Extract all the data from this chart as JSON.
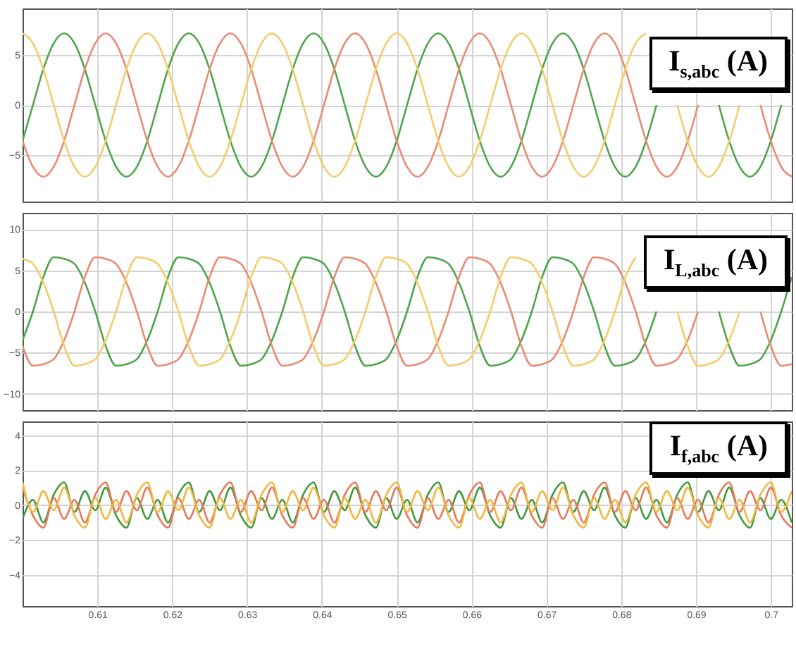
{
  "chart_data": [
    {
      "type": "line",
      "title": "I$_{s,abc}$ (A)",
      "x": [
        0.6,
        0.60139,
        0.60278,
        0.60417,
        0.60556,
        0.60694,
        0.60833,
        0.60972,
        0.61111,
        0.6125,
        0.61389,
        0.61528,
        0.61667,
        0.61806,
        0.61944,
        0.62083,
        0.62222,
        0.62361,
        0.625,
        0.62639,
        0.62778,
        0.62917,
        0.63056,
        0.63194,
        0.63333,
        0.63472,
        0.63611,
        0.6375,
        0.63889,
        0.64028,
        0.64167,
        0.64306,
        0.64444,
        0.64583,
        0.64722,
        0.64861,
        0.65,
        0.65139,
        0.65278,
        0.65417,
        0.65556,
        0.65694,
        0.65833,
        0.65972,
        0.66111,
        0.6625,
        0.66389,
        0.66528,
        0.66667,
        0.66806,
        0.66944,
        0.67083,
        0.67222,
        0.67361,
        0.675,
        0.67639,
        0.67778,
        0.67917,
        0.68056,
        0.68194,
        0.68333,
        0.68472,
        0.68611,
        0.6875,
        0.68889,
        0.69028,
        0.69167,
        0.69306,
        0.69444,
        0.69583,
        0.69722,
        0.69861,
        0.7,
        0.70139,
        0.70278
      ],
      "series": [
        {
          "color": "#4ea54a",
          "values": [
            -3.6,
            0,
            3.6,
            6.2,
            7.2,
            6.2,
            3.6,
            0,
            -3.6,
            -6.2,
            -7.2,
            -6.2,
            -3.6,
            0,
            3.6,
            6.2,
            7.2,
            6.2,
            3.6,
            0,
            -3.6,
            -6.2,
            -7.2,
            -6.2,
            -3.6,
            0,
            3.6,
            6.2,
            7.2,
            6.2,
            3.6,
            0,
            -3.6,
            -6.2,
            -7.2,
            -6.2,
            -3.6,
            0,
            3.6,
            6.2,
            7.2,
            6.2,
            3.6,
            0,
            -3.6,
            -6.2,
            -7.2,
            -6.2,
            -3.6,
            0,
            3.6,
            6.2,
            7.2,
            6.2,
            3.6,
            0,
            -3.6,
            -6.2,
            -7.2,
            -6.2,
            -3.6,
            0,
            null,
            null,
            null,
            null,
            null,
            0,
            -3.6,
            -6.2,
            -7.2,
            -6.2,
            -3.6,
            0,
            null
          ]
        },
        {
          "color": "#e98b72",
          "values": [
            -3.6,
            -6.2,
            -7.2,
            -6.2,
            -3.6,
            0,
            3.6,
            6.2,
            7.2,
            6.2,
            3.6,
            0,
            -3.6,
            -6.2,
            -7.2,
            -6.2,
            -3.6,
            0,
            3.6,
            6.2,
            7.2,
            6.2,
            3.6,
            0,
            -3.6,
            -6.2,
            -7.2,
            -6.2,
            -3.6,
            0,
            3.6,
            6.2,
            7.2,
            6.2,
            3.6,
            0,
            -3.6,
            -6.2,
            -7.2,
            -6.2,
            -3.6,
            0,
            3.6,
            6.2,
            7.2,
            6.2,
            3.6,
            0,
            -3.6,
            -6.2,
            -7.2,
            -6.2,
            -3.6,
            0,
            3.6,
            6.2,
            7.2,
            6.2,
            3.6,
            0,
            -3.6,
            -6.2,
            -7.2,
            -6.2,
            -3.6,
            0,
            null,
            null,
            null,
            null,
            null,
            0,
            -3.6,
            -6.2,
            -7.2
          ]
        },
        {
          "color": "#f4cc6a",
          "values": [
            7.2,
            6.2,
            3.6,
            0,
            -3.6,
            -6.2,
            -7.2,
            -6.2,
            -3.6,
            0,
            3.6,
            6.2,
            7.2,
            6.2,
            3.6,
            0,
            -3.6,
            -6.2,
            -7.2,
            -6.2,
            -3.6,
            0,
            3.6,
            6.2,
            7.2,
            6.2,
            3.6,
            0,
            -3.6,
            -6.2,
            -7.2,
            -6.2,
            -3.6,
            0,
            3.6,
            6.2,
            7.2,
            6.2,
            3.6,
            0,
            -3.6,
            -6.2,
            -7.2,
            -6.2,
            -3.6,
            0,
            3.6,
            6.2,
            7.2,
            6.2,
            3.6,
            0,
            -3.6,
            -6.2,
            -7.2,
            -6.2,
            -3.6,
            0,
            3.6,
            6.2,
            7.2,
            null,
            null,
            0,
            -3.6,
            -6.2,
            -7.2,
            -6.2,
            -3.6,
            0,
            null,
            null,
            null,
            null,
            null
          ]
        }
      ],
      "xlim": [
        0.6,
        0.7028
      ],
      "xticks": [
        0.61,
        0.62,
        0.63,
        0.64,
        0.65,
        0.66,
        0.67,
        0.68,
        0.69,
        0.7
      ],
      "ylim": [
        -9.7,
        9.7
      ],
      "yticks": [
        -5,
        0,
        5
      ],
      "grid": true,
      "tick_labels": "y"
    },
    {
      "type": "line",
      "title": "I$_{L,abc}$ (A)",
      "x": [
        0.6,
        0.60139,
        0.60278,
        0.60417,
        0.60556,
        0.60694,
        0.60833,
        0.60972,
        0.61111,
        0.6125,
        0.61389,
        0.61528,
        0.61667,
        0.61806,
        0.61944,
        0.62083,
        0.62222,
        0.62361,
        0.625,
        0.62639,
        0.62778,
        0.62917,
        0.63056,
        0.63194,
        0.63333,
        0.63472,
        0.63611,
        0.6375,
        0.63889,
        0.64028,
        0.64167,
        0.64306,
        0.64444,
        0.64583,
        0.64722,
        0.64861,
        0.65,
        0.65139,
        0.65278,
        0.65417,
        0.65556,
        0.65694,
        0.65833,
        0.65972,
        0.66111,
        0.6625,
        0.66389,
        0.66528,
        0.66667,
        0.66806,
        0.66944,
        0.67083,
        0.67222,
        0.67361,
        0.675,
        0.67639,
        0.67778,
        0.67917,
        0.68056,
        0.68194,
        0.68333,
        0.68472,
        0.68611,
        0.6875,
        0.68889,
        0.69028,
        0.69167,
        0.69306,
        0.69444,
        0.69583,
        0.69722,
        0.69861,
        0.7,
        0.70139,
        0.70278
      ],
      "series": [
        {
          "color": "#4ea54a",
          "values": [
            -3.5,
            0,
            4.2,
            6.6,
            6.4,
            5.8,
            3.5,
            0,
            -4.2,
            -6.6,
            -6.4,
            -5.8,
            -3.5,
            0,
            4.2,
            6.6,
            6.4,
            5.8,
            3.5,
            0,
            -4.2,
            -6.6,
            -6.4,
            -5.8,
            -3.5,
            0,
            4.2,
            6.6,
            6.4,
            5.8,
            3.5,
            0,
            -4.2,
            -6.6,
            -6.4,
            -5.8,
            -3.5,
            0,
            4.2,
            6.6,
            6.4,
            5.8,
            3.5,
            0,
            -4.2,
            -6.6,
            -6.4,
            -5.8,
            -3.5,
            0,
            4.2,
            6.6,
            6.4,
            5.8,
            3.5,
            0,
            -4.2,
            -6.6,
            -6.4,
            -5.8,
            -3.5,
            0,
            null,
            null,
            null,
            null,
            null,
            0,
            -4.2,
            -6.6,
            -6.4,
            -5.8,
            -3.5,
            0,
            4.2
          ]
        },
        {
          "color": "#e98b72",
          "values": [
            -4.2,
            -6.6,
            -6.4,
            -5.8,
            -3.5,
            0,
            4.2,
            6.6,
            6.4,
            5.8,
            3.5,
            0,
            -4.2,
            -6.6,
            -6.4,
            -5.8,
            -3.5,
            0,
            4.2,
            6.6,
            6.4,
            5.8,
            3.5,
            0,
            -4.2,
            -6.6,
            -6.4,
            -5.8,
            -3.5,
            0,
            4.2,
            6.6,
            6.4,
            5.8,
            3.5,
            0,
            -4.2,
            -6.6,
            -6.4,
            -5.8,
            -3.5,
            0,
            4.2,
            6.6,
            6.4,
            5.8,
            3.5,
            0,
            -4.2,
            -6.6,
            -6.4,
            -5.8,
            -3.5,
            0,
            4.2,
            6.6,
            6.4,
            5.8,
            3.5,
            0,
            -4.2,
            -6.6,
            -6.4,
            -5.8,
            -3.5,
            0,
            null,
            null,
            null,
            null,
            null,
            0,
            -4.2,
            -6.6,
            -6.4
          ]
        },
        {
          "color": "#f4cc6a",
          "values": [
            6.4,
            5.8,
            3.5,
            0,
            -4.2,
            -6.6,
            -6.4,
            -5.8,
            -3.5,
            0,
            4.2,
            6.6,
            6.4,
            5.8,
            3.5,
            0,
            -4.2,
            -6.6,
            -6.4,
            -5.8,
            -3.5,
            0,
            4.2,
            6.6,
            6.4,
            5.8,
            3.5,
            0,
            -4.2,
            -6.6,
            -6.4,
            -5.8,
            -3.5,
            0,
            4.2,
            6.6,
            6.4,
            5.8,
            3.5,
            0,
            -4.2,
            -6.6,
            -6.4,
            -5.8,
            -3.5,
            0,
            4.2,
            6.6,
            6.4,
            5.8,
            3.5,
            0,
            -4.2,
            -6.6,
            -6.4,
            -5.8,
            -3.5,
            0,
            4.2,
            6.6,
            null,
            null,
            null,
            0,
            -4.2,
            -6.6,
            -6.4,
            -5.8,
            -3.5,
            0,
            null,
            null,
            null,
            null,
            null
          ]
        }
      ],
      "xlim": [
        0.6,
        0.7028
      ],
      "xticks": [
        0.61,
        0.62,
        0.63,
        0.64,
        0.65,
        0.66,
        0.67,
        0.68,
        0.69,
        0.7
      ],
      "ylim": [
        -12,
        12
      ],
      "yticks": [
        -10,
        -5,
        0,
        5,
        10
      ],
      "grid": true,
      "tick_labels": "y"
    },
    {
      "type": "line",
      "title": "I$_{f,abc}$ (A)",
      "x": [
        0.6,
        0.60139,
        0.60278,
        0.60417,
        0.60556,
        0.60694,
        0.60833,
        0.60972,
        0.61111,
        0.6125,
        0.61389,
        0.61528,
        0.61667,
        0.61806,
        0.61944,
        0.62083,
        0.62222,
        0.62361,
        0.625,
        0.62639,
        0.62778,
        0.62917,
        0.63056,
        0.63194,
        0.63333,
        0.63472,
        0.63611,
        0.6375,
        0.63889,
        0.64028,
        0.64167,
        0.64306,
        0.64444,
        0.64583,
        0.64722,
        0.64861,
        0.65,
        0.65139,
        0.65278,
        0.65417,
        0.65556,
        0.65694,
        0.65833,
        0.65972,
        0.66111,
        0.6625,
        0.66389,
        0.66528,
        0.66667,
        0.66806,
        0.66944,
        0.67083,
        0.67222,
        0.67361,
        0.675,
        0.67639,
        0.67778,
        0.67917,
        0.68056,
        0.68194,
        0.68333,
        0.68472,
        0.68611,
        0.6875,
        0.68889,
        0.69028,
        0.69167,
        0.69306,
        0.69444,
        0.69583,
        0.69722,
        0.69861,
        0.7,
        0.70139,
        0.70278
      ],
      "series": [
        {
          "color": "#3f9a3c",
          "values": [
            -0.8,
            0.3,
            -1.0,
            0.6,
            1.3,
            -0.4,
            0.8,
            -0.3,
            1.0,
            -0.6,
            -1.3,
            0.4,
            -0.8,
            0.3,
            -1.0,
            0.6,
            1.3,
            -0.4,
            0.8,
            -0.3,
            1.0,
            -0.6,
            -1.3,
            0.4,
            -0.8,
            0.3,
            -1.0,
            0.6,
            1.3,
            -0.4,
            0.8,
            -0.3,
            1.0,
            -0.6,
            -1.3,
            0.4,
            -0.8,
            0.3,
            -1.0,
            0.6,
            1.3,
            -0.4,
            0.8,
            -0.3,
            1.0,
            -0.6,
            -1.3,
            0.4,
            -0.8,
            0.3,
            -1.0,
            0.6,
            1.3,
            -0.4,
            0.8,
            -0.3,
            1.0,
            -0.6,
            -1.3,
            0.4,
            -0.8,
            0.3,
            -1.0,
            0.6,
            1.3,
            -0.4,
            0.8,
            -0.3,
            1.0,
            -0.6,
            -1.3,
            0.4,
            -0.8,
            0.3,
            -1.0
          ]
        },
        {
          "color": "#e8775a",
          "values": [
            1.0,
            -0.6,
            -1.3,
            0.4,
            -0.8,
            0.3,
            -1.0,
            0.6,
            1.3,
            -0.4,
            0.8,
            -0.3,
            1.0,
            -0.6,
            -1.3,
            0.4,
            -0.8,
            0.3,
            -1.0,
            0.6,
            1.3,
            -0.4,
            0.8,
            -0.3,
            1.0,
            -0.6,
            -1.3,
            0.4,
            -0.8,
            0.3,
            -1.0,
            0.6,
            1.3,
            -0.4,
            0.8,
            -0.3,
            1.0,
            -0.6,
            -1.3,
            0.4,
            -0.8,
            0.3,
            -1.0,
            0.6,
            1.3,
            -0.4,
            0.8,
            -0.3,
            1.0,
            -0.6,
            -1.3,
            0.4,
            -0.8,
            0.3,
            -1.0,
            0.6,
            1.3,
            -0.4,
            0.8,
            -0.3,
            1.0,
            -0.6,
            -1.3,
            0.4,
            -0.8,
            0.3,
            -1.0,
            0.6,
            1.3,
            -0.4,
            0.8,
            -0.3,
            1.0,
            -0.6,
            -1.3
          ]
        },
        {
          "color": "#f2b63c",
          "values": [
            1.3,
            -0.4,
            0.8,
            -0.3,
            1.0,
            -0.6,
            -1.3,
            0.4,
            -0.8,
            0.3,
            -1.0,
            0.6,
            1.3,
            -0.4,
            0.8,
            -0.3,
            1.0,
            -0.6,
            -1.3,
            0.4,
            -0.8,
            0.3,
            -1.0,
            0.6,
            1.3,
            -0.4,
            0.8,
            -0.3,
            1.0,
            -0.6,
            -1.3,
            0.4,
            -0.8,
            0.3,
            -1.0,
            0.6,
            1.3,
            -0.4,
            0.8,
            -0.3,
            1.0,
            -0.6,
            -1.3,
            0.4,
            -0.8,
            0.3,
            -1.0,
            0.6,
            1.3,
            -0.4,
            0.8,
            -0.3,
            1.0,
            -0.6,
            -1.3,
            0.4,
            -0.8,
            0.3,
            -1.0,
            0.6,
            1.3,
            -0.4,
            0.8,
            -0.3,
            1.0,
            -0.6,
            -1.3,
            0.4,
            -0.8,
            0.3,
            -1.0,
            0.6,
            1.3,
            -0.4,
            0.8
          ]
        }
      ],
      "xlim": [
        0.6,
        0.7028
      ],
      "xticks": [
        0.61,
        0.62,
        0.63,
        0.64,
        0.65,
        0.66,
        0.67,
        0.68,
        0.69,
        0.7
      ],
      "ylim": [
        -5.8,
        4.8
      ],
      "yticks": [
        -4,
        -2,
        0,
        2,
        4
      ],
      "grid": true
    }
  ]
}
